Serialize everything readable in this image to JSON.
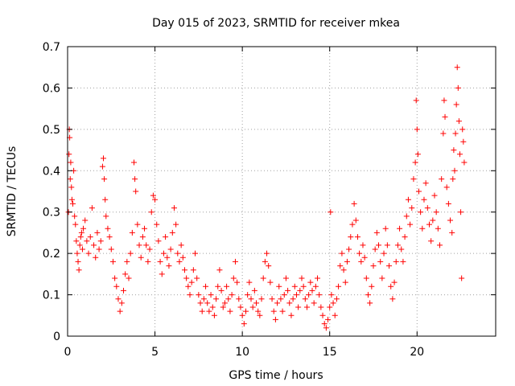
{
  "chart_data": {
    "type": "scatter",
    "title": "Day 015 of 2023, SRMTID for receiver mkea",
    "xlabel": "GPS time / hours",
    "ylabel": "SRMTID / TECUs",
    "xlim": [
      0,
      24.5
    ],
    "ylim": [
      0,
      0.7
    ],
    "xticks": [
      0,
      5,
      10,
      15,
      20
    ],
    "yticks": [
      0,
      0.1,
      0.2,
      0.3,
      0.4,
      0.5,
      0.6,
      0.7
    ],
    "xtick_labels": [
      "0",
      "5",
      "10",
      "15",
      "20"
    ],
    "ytick_labels": [
      "0",
      "0.1",
      "0.2",
      "0.3",
      "0.4",
      "0.5",
      "0.6",
      "0.7"
    ],
    "grid": true,
    "marker": "+",
    "color": "#ff0000",
    "series": [
      {
        "name": "SRMTID",
        "points": [
          [
            0.05,
            0.3
          ],
          [
            0.08,
            0.44
          ],
          [
            0.1,
            0.5
          ],
          [
            0.12,
            0.48
          ],
          [
            0.15,
            0.38
          ],
          [
            0.18,
            0.42
          ],
          [
            0.22,
            0.36
          ],
          [
            0.25,
            0.33
          ],
          [
            0.3,
            0.32
          ],
          [
            0.35,
            0.4
          ],
          [
            0.4,
            0.29
          ],
          [
            0.45,
            0.27
          ],
          [
            0.5,
            0.23
          ],
          [
            0.55,
            0.2
          ],
          [
            0.6,
            0.18
          ],
          [
            0.65,
            0.16
          ],
          [
            0.7,
            0.22
          ],
          [
            0.75,
            0.24
          ],
          [
            0.8,
            0.25
          ],
          [
            0.85,
            0.21
          ],
          [
            0.9,
            0.26
          ],
          [
            1.0,
            0.28
          ],
          [
            1.1,
            0.23
          ],
          [
            1.2,
            0.2
          ],
          [
            1.3,
            0.24
          ],
          [
            1.4,
            0.31
          ],
          [
            1.5,
            0.22
          ],
          [
            1.6,
            0.19
          ],
          [
            1.7,
            0.25
          ],
          [
            1.8,
            0.21
          ],
          [
            1.9,
            0.23
          ],
          [
            2.0,
            0.41
          ],
          [
            2.05,
            0.43
          ],
          [
            2.1,
            0.38
          ],
          [
            2.15,
            0.33
          ],
          [
            2.2,
            0.29
          ],
          [
            2.3,
            0.26
          ],
          [
            2.4,
            0.24
          ],
          [
            2.5,
            0.21
          ],
          [
            2.6,
            0.18
          ],
          [
            2.7,
            0.14
          ],
          [
            2.8,
            0.12
          ],
          [
            2.9,
            0.09
          ],
          [
            3.0,
            0.06
          ],
          [
            3.1,
            0.08
          ],
          [
            3.2,
            0.11
          ],
          [
            3.3,
            0.15
          ],
          [
            3.4,
            0.18
          ],
          [
            3.5,
            0.14
          ],
          [
            3.6,
            0.2
          ],
          [
            3.7,
            0.25
          ],
          [
            3.8,
            0.42
          ],
          [
            3.85,
            0.38
          ],
          [
            3.9,
            0.35
          ],
          [
            4.0,
            0.27
          ],
          [
            4.1,
            0.22
          ],
          [
            4.2,
            0.19
          ],
          [
            4.3,
            0.24
          ],
          [
            4.4,
            0.26
          ],
          [
            4.5,
            0.22
          ],
          [
            4.6,
            0.18
          ],
          [
            4.7,
            0.21
          ],
          [
            4.8,
            0.3
          ],
          [
            4.9,
            0.34
          ],
          [
            5.0,
            0.33
          ],
          [
            5.1,
            0.27
          ],
          [
            5.2,
            0.23
          ],
          [
            5.3,
            0.18
          ],
          [
            5.4,
            0.15
          ],
          [
            5.5,
            0.2
          ],
          [
            5.6,
            0.24
          ],
          [
            5.7,
            0.19
          ],
          [
            5.8,
            0.17
          ],
          [
            5.9,
            0.21
          ],
          [
            6.0,
            0.25
          ],
          [
            6.1,
            0.31
          ],
          [
            6.2,
            0.27
          ],
          [
            6.3,
            0.2
          ],
          [
            6.4,
            0.18
          ],
          [
            6.5,
            0.22
          ],
          [
            6.6,
            0.19
          ],
          [
            6.7,
            0.16
          ],
          [
            6.8,
            0.14
          ],
          [
            6.9,
            0.12
          ],
          [
            7.0,
            0.1
          ],
          [
            7.1,
            0.13
          ],
          [
            7.2,
            0.16
          ],
          [
            7.3,
            0.2
          ],
          [
            7.4,
            0.14
          ],
          [
            7.5,
            0.1
          ],
          [
            7.6,
            0.08
          ],
          [
            7.7,
            0.06
          ],
          [
            7.8,
            0.09
          ],
          [
            7.9,
            0.12
          ],
          [
            8.0,
            0.08
          ],
          [
            8.1,
            0.06
          ],
          [
            8.2,
            0.1
          ],
          [
            8.3,
            0.07
          ],
          [
            8.4,
            0.05
          ],
          [
            8.5,
            0.09
          ],
          [
            8.6,
            0.12
          ],
          [
            8.7,
            0.16
          ],
          [
            8.8,
            0.11
          ],
          [
            8.9,
            0.07
          ],
          [
            9.0,
            0.08
          ],
          [
            9.1,
            0.12
          ],
          [
            9.2,
            0.09
          ],
          [
            9.3,
            0.06
          ],
          [
            9.4,
            0.1
          ],
          [
            9.5,
            0.14
          ],
          [
            9.6,
            0.18
          ],
          [
            9.7,
            0.13
          ],
          [
            9.8,
            0.09
          ],
          [
            9.9,
            0.07
          ],
          [
            10.0,
            0.05
          ],
          [
            10.1,
            0.03
          ],
          [
            10.2,
            0.06
          ],
          [
            10.3,
            0.1
          ],
          [
            10.4,
            0.13
          ],
          [
            10.5,
            0.09
          ],
          [
            10.6,
            0.07
          ],
          [
            10.7,
            0.11
          ],
          [
            10.8,
            0.08
          ],
          [
            10.9,
            0.06
          ],
          [
            11.0,
            0.05
          ],
          [
            11.1,
            0.09
          ],
          [
            11.2,
            0.14
          ],
          [
            11.3,
            0.18
          ],
          [
            11.4,
            0.2
          ],
          [
            11.5,
            0.17
          ],
          [
            11.6,
            0.13
          ],
          [
            11.7,
            0.09
          ],
          [
            11.8,
            0.06
          ],
          [
            11.9,
            0.04
          ],
          [
            12.0,
            0.08
          ],
          [
            12.1,
            0.12
          ],
          [
            12.2,
            0.09
          ],
          [
            12.3,
            0.06
          ],
          [
            12.4,
            0.1
          ],
          [
            12.5,
            0.14
          ],
          [
            12.6,
            0.11
          ],
          [
            12.7,
            0.08
          ],
          [
            12.8,
            0.05
          ],
          [
            12.9,
            0.09
          ],
          [
            13.0,
            0.12
          ],
          [
            13.1,
            0.1
          ],
          [
            13.2,
            0.07
          ],
          [
            13.3,
            0.11
          ],
          [
            13.4,
            0.14
          ],
          [
            13.5,
            0.12
          ],
          [
            13.6,
            0.09
          ],
          [
            13.7,
            0.07
          ],
          [
            13.8,
            0.1
          ],
          [
            13.9,
            0.13
          ],
          [
            14.0,
            0.11
          ],
          [
            14.1,
            0.08
          ],
          [
            14.2,
            0.12
          ],
          [
            14.3,
            0.14
          ],
          [
            14.4,
            0.1
          ],
          [
            14.5,
            0.07
          ],
          [
            14.6,
            0.05
          ],
          [
            14.7,
            0.03
          ],
          [
            14.8,
            0.02
          ],
          [
            14.9,
            0.04
          ],
          [
            15.0,
            0.07
          ],
          [
            15.05,
            0.3
          ],
          [
            15.1,
            0.1
          ],
          [
            15.2,
            0.08
          ],
          [
            15.3,
            0.05
          ],
          [
            15.4,
            0.09
          ],
          [
            15.5,
            0.12
          ],
          [
            15.6,
            0.17
          ],
          [
            15.7,
            0.2
          ],
          [
            15.8,
            0.16
          ],
          [
            15.9,
            0.13
          ],
          [
            16.0,
            0.18
          ],
          [
            16.1,
            0.21
          ],
          [
            16.2,
            0.24
          ],
          [
            16.3,
            0.27
          ],
          [
            16.4,
            0.32
          ],
          [
            16.5,
            0.28
          ],
          [
            16.6,
            0.24
          ],
          [
            16.7,
            0.2
          ],
          [
            16.8,
            0.18
          ],
          [
            16.9,
            0.22
          ],
          [
            17.0,
            0.19
          ],
          [
            17.1,
            0.14
          ],
          [
            17.2,
            0.1
          ],
          [
            17.3,
            0.08
          ],
          [
            17.4,
            0.12
          ],
          [
            17.5,
            0.17
          ],
          [
            17.6,
            0.21
          ],
          [
            17.7,
            0.25
          ],
          [
            17.8,
            0.22
          ],
          [
            17.9,
            0.18
          ],
          [
            18.0,
            0.14
          ],
          [
            18.1,
            0.2
          ],
          [
            18.2,
            0.26
          ],
          [
            18.3,
            0.22
          ],
          [
            18.4,
            0.17
          ],
          [
            18.5,
            0.12
          ],
          [
            18.6,
            0.09
          ],
          [
            18.7,
            0.13
          ],
          [
            18.8,
            0.18
          ],
          [
            18.9,
            0.22
          ],
          [
            19.0,
            0.26
          ],
          [
            19.1,
            0.21
          ],
          [
            19.2,
            0.18
          ],
          [
            19.3,
            0.24
          ],
          [
            19.4,
            0.29
          ],
          [
            19.5,
            0.33
          ],
          [
            19.6,
            0.27
          ],
          [
            19.7,
            0.31
          ],
          [
            19.8,
            0.38
          ],
          [
            19.9,
            0.42
          ],
          [
            19.95,
            0.57
          ],
          [
            20.0,
            0.5
          ],
          [
            20.05,
            0.44
          ],
          [
            20.1,
            0.35
          ],
          [
            20.2,
            0.3
          ],
          [
            20.3,
            0.26
          ],
          [
            20.4,
            0.33
          ],
          [
            20.5,
            0.37
          ],
          [
            20.6,
            0.31
          ],
          [
            20.7,
            0.27
          ],
          [
            20.8,
            0.23
          ],
          [
            20.9,
            0.28
          ],
          [
            21.0,
            0.34
          ],
          [
            21.1,
            0.3
          ],
          [
            21.2,
            0.26
          ],
          [
            21.3,
            0.22
          ],
          [
            21.4,
            0.38
          ],
          [
            21.5,
            0.49
          ],
          [
            21.55,
            0.57
          ],
          [
            21.6,
            0.53
          ],
          [
            21.7,
            0.36
          ],
          [
            21.8,
            0.32
          ],
          [
            21.9,
            0.28
          ],
          [
            22.0,
            0.25
          ],
          [
            22.05,
            0.38
          ],
          [
            22.1,
            0.45
          ],
          [
            22.15,
            0.4
          ],
          [
            22.2,
            0.49
          ],
          [
            22.25,
            0.56
          ],
          [
            22.3,
            0.65
          ],
          [
            22.35,
            0.6
          ],
          [
            22.4,
            0.52
          ],
          [
            22.45,
            0.44
          ],
          [
            22.5,
            0.3
          ],
          [
            22.55,
            0.14
          ],
          [
            22.6,
            0.5
          ],
          [
            22.65,
            0.47
          ],
          [
            22.7,
            0.42
          ]
        ]
      }
    ]
  }
}
